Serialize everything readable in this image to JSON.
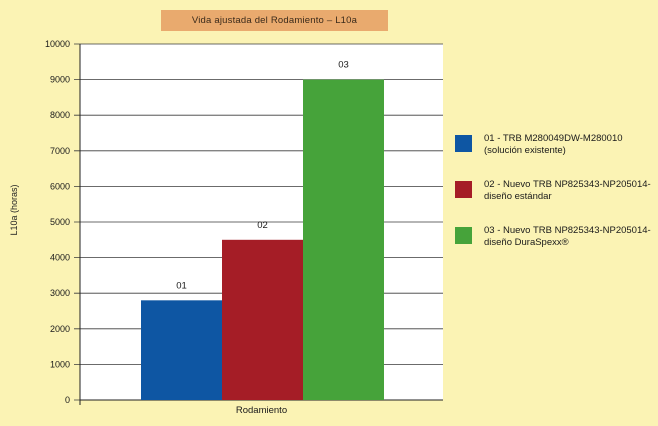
{
  "chart_data": {
    "type": "bar",
    "title": "Vida ajustada del Rodamiento – L10a",
    "xlabel": "Rodamiento",
    "ylabel": "L10a (horas)",
    "ylim": [
      0,
      10000
    ],
    "yticks": [
      0,
      1000,
      2000,
      3000,
      4000,
      5000,
      6000,
      7000,
      8000,
      9000,
      10000
    ],
    "grid": true,
    "legend_position": "right",
    "categories": [
      "01",
      "02",
      "03"
    ],
    "values": [
      2800,
      4500,
      9000
    ],
    "colors": [
      "#0e56a3",
      "#a51d26",
      "#46a33a"
    ],
    "legend": [
      {
        "line1": "01 - TRB M280049DW-M280010",
        "line2": "(solución existente)",
        "color": "#0e56a3"
      },
      {
        "line1": "02 - Nuevo TRB NP825343-NP205014-",
        "line2": "diseño estándar",
        "color": "#a51d26"
      },
      {
        "line1": "03 - Nuevo TRB NP825343-NP205014-",
        "line2": "diseño DuraSpexx®",
        "color": "#46a33a"
      }
    ]
  }
}
